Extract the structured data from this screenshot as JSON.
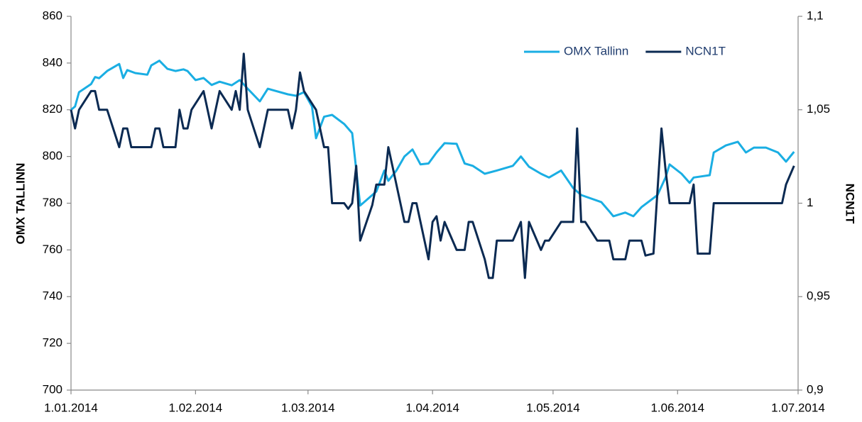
{
  "chart_data": {
    "type": "line",
    "y_label": "OMX TALLINN",
    "y2_label": "NCN1T",
    "xlim": [
      "1.01.2014",
      "1.07.2014"
    ],
    "xticks": [
      "1.01.2014",
      "1.02.2014",
      "1.03.2014",
      "1.04.2014",
      "1.05.2014",
      "1.06.2014",
      "1.07.2014"
    ],
    "ylim": [
      700,
      860
    ],
    "yticks": [
      700,
      720,
      740,
      760,
      780,
      800,
      820,
      840,
      860
    ],
    "y2lim": [
      0.9,
      1.1
    ],
    "y2ticks": [
      {
        "value": 0.9,
        "label": "0,9"
      },
      {
        "value": 0.95,
        "label": "0,95"
      },
      1,
      {
        "value": 1.05,
        "label": "1,05"
      },
      {
        "value": 1.1,
        "label": "1,1"
      }
    ],
    "legend": "top-right",
    "series": [
      {
        "name": "OMX Tallinn",
        "color": "#1aaee3",
        "axis": "y",
        "x": [
          "1.01.2014",
          "2.01.2014",
          "3.01.2014",
          "6.01.2014",
          "7.01.2014",
          "8.01.2014",
          "10.01.2014",
          "13.01.2014",
          "14.01.2014",
          "15.01.2014",
          "17.01.2014",
          "20.01.2014",
          "21.01.2014",
          "23.01.2014",
          "25.01.2014",
          "27.01.2014",
          "29.01.2014",
          "30.01.2014",
          "1.02.2014",
          "3.02.2014",
          "5.02.2014",
          "7.02.2014",
          "10.02.2014",
          "12.02.2014",
          "14.02.2014",
          "17.02.2014",
          "19.02.2014",
          "24.02.2014",
          "26.02.2014",
          "28.02.2014",
          "2.03.2014",
          "3.03.2014",
          "5.03.2014",
          "7.03.2014",
          "10.03.2014",
          "12.03.2014",
          "14.03.2014",
          "16.03.2014",
          "18.03.2014",
          "20.03.2014",
          "21.03.2014",
          "23.03.2014",
          "25.03.2014",
          "27.03.2014",
          "29.03.2014",
          "31.03.2014",
          "2.04.2014",
          "4.04.2014",
          "7.04.2014",
          "9.04.2014",
          "11.04.2014",
          "14.04.2014",
          "17.04.2014",
          "21.04.2014",
          "23.04.2014",
          "25.04.2014",
          "28.04.2014",
          "30.04.2014",
          "3.05.2014",
          "6.05.2014",
          "8.05.2014",
          "13.05.2014",
          "15.05.2014",
          "16.05.2014",
          "19.05.2014",
          "21.05.2014",
          "23.05.2014",
          "27.05.2014",
          "29.05.2014",
          "30.05.2014",
          "2.06.2014",
          "4.06.2014",
          "5.06.2014",
          "9.06.2014",
          "10.06.2014",
          "13.06.2014",
          "16.06.2014",
          "18.06.2014",
          "20.06.2014",
          "23.06.2014",
          "26.06.2014",
          "28.06.2014",
          "30.06.2014"
        ],
        "values": [
          820,
          821.4,
          827.5,
          831,
          834,
          833.5,
          836.6,
          839.6,
          833.6,
          837,
          835.7,
          835,
          839,
          841,
          837.5,
          836.6,
          837.3,
          836.6,
          832.7,
          833.6,
          830.6,
          832,
          830.5,
          832.7,
          829,
          823.6,
          829,
          826.6,
          826,
          827.5,
          821.4,
          807.8,
          817,
          817.8,
          813.9,
          810,
          779,
          782,
          785,
          794,
          789.6,
          794,
          800,
          803,
          796.6,
          797,
          801.7,
          805.7,
          805.4,
          797,
          796,
          792.6,
          794,
          796,
          800,
          795.6,
          792.6,
          791,
          794,
          786.5,
          783.5,
          780.5,
          776.5,
          774.4,
          776,
          774.4,
          778.3,
          783.5,
          791,
          796.6,
          792.6,
          788.7,
          791,
          792,
          801.7,
          804.7,
          806.3,
          801.7,
          803.8,
          803.8,
          801.7,
          797.8,
          802
        ]
      },
      {
        "name": "NCN1T",
        "color": "#0b2a52",
        "axis": "y2",
        "x": [
          "1.01.2014",
          "2.01.2014",
          "3.01.2014",
          "6.01.2014",
          "7.01.2014",
          "8.01.2014",
          "10.01.2014",
          "13.01.2014",
          "14.01.2014",
          "15.01.2014",
          "16.01.2014",
          "21.01.2014",
          "22.01.2014",
          "23.01.2014",
          "24.01.2014",
          "27.01.2014",
          "28.01.2014",
          "29.01.2014",
          "30.01.2014",
          "31.01.2014",
          "3.02.2014",
          "5.02.2014",
          "7.02.2014",
          "10.02.2014",
          "11.02.2014",
          "12.02.2014",
          "13.02.2014",
          "14.02.2014",
          "17.02.2014",
          "19.02.2014",
          "24.02.2014",
          "25.02.2014",
          "26.02.2014",
          "27.02.2014",
          "28.02.2014",
          "3.03.2014",
          "5.03.2014",
          "6.03.2014",
          "7.03.2014",
          "10.03.2014",
          "11.03.2014",
          "12.03.2014",
          "13.03.2014",
          "14.03.2014",
          "17.03.2014",
          "18.03.2014",
          "20.03.2014",
          "21.03.2014",
          "22.03.2014",
          "25.03.2014",
          "26.03.2014",
          "27.03.2014",
          "28.03.2014",
          "31.03.2014",
          "1.04.2014",
          "2.04.2014",
          "3.04.2014",
          "4.04.2014",
          "7.04.2014",
          "9.04.2014",
          "10.04.2014",
          "11.04.2014",
          "14.04.2014",
          "15.04.2014",
          "16.04.2014",
          "17.04.2014",
          "21.04.2014",
          "23.04.2014",
          "24.04.2014",
          "25.04.2014",
          "28.04.2014",
          "29.04.2014",
          "30.04.2014",
          "3.05.2014",
          "6.05.2014",
          "7.05.2014",
          "8.05.2014",
          "9.05.2014",
          "12.05.2014",
          "13.05.2014",
          "15.05.2014",
          "16.05.2014",
          "19.05.2014",
          "20.05.2014",
          "23.05.2014",
          "24.05.2014",
          "26.05.2014",
          "28.05.2014",
          "29.05.2014",
          "30.05.2014",
          "4.06.2014",
          "5.06.2014",
          "6.06.2014",
          "9.06.2014",
          "10.06.2014",
          "27.06.2014",
          "28.06.2014",
          "30.06.2014"
        ],
        "values": [
          1.05,
          1.04,
          1.05,
          1.06,
          1.06,
          1.05,
          1.05,
          1.03,
          1.04,
          1.04,
          1.03,
          1.03,
          1.04,
          1.04,
          1.03,
          1.03,
          1.05,
          1.04,
          1.04,
          1.05,
          1.06,
          1.04,
          1.06,
          1.05,
          1.06,
          1.05,
          1.08,
          1.05,
          1.03,
          1.05,
          1.05,
          1.04,
          1.05,
          1.07,
          1.06,
          1.05,
          1.03,
          1.03,
          1.0,
          1.0,
          0.997,
          1.0,
          1.02,
          0.98,
          0.999,
          1.01,
          1.01,
          1.03,
          1.02,
          0.99,
          0.99,
          1.0,
          1.0,
          0.97,
          0.99,
          0.993,
          0.98,
          0.99,
          0.975,
          0.975,
          0.99,
          0.99,
          0.97,
          0.96,
          0.96,
          0.98,
          0.98,
          0.99,
          0.96,
          0.99,
          0.975,
          0.98,
          0.98,
          0.99,
          0.99,
          1.04,
          0.99,
          0.99,
          0.98,
          0.98,
          0.98,
          0.97,
          0.97,
          0.98,
          0.98,
          0.972,
          0.973,
          1.04,
          1.018,
          1.0,
          1.0,
          1.01,
          0.973,
          0.973,
          1.0,
          1.0,
          1.01,
          1.02
        ]
      }
    ]
  }
}
